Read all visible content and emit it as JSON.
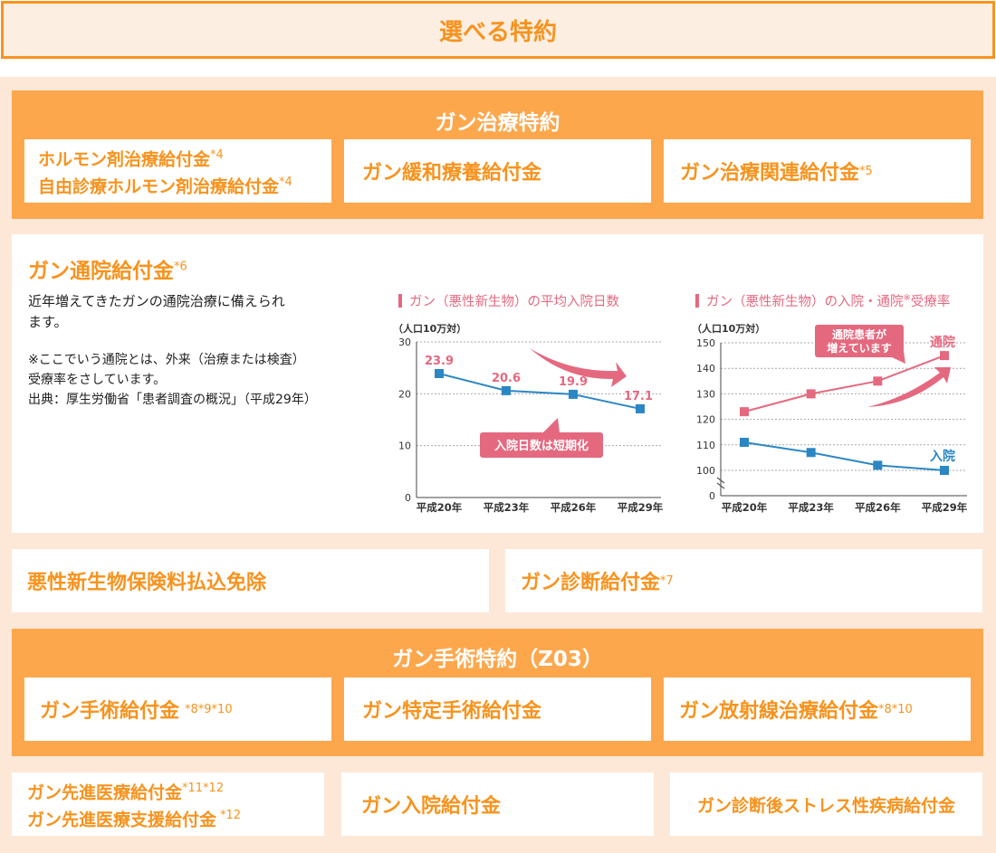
{
  "header": {
    "title": "選べる特約"
  },
  "cancer_treatment": {
    "title": "ガン治療特約",
    "items": [
      {
        "line1": "ホルモン剤治療給付金",
        "line1_sup": "*4",
        "line2": "自由診療ホルモン剤治療給付金",
        "line2_sup": "*4"
      },
      {
        "label": "ガン緩和療養給付金"
      },
      {
        "label": "ガン治療関連給付金",
        "sup": "*5"
      }
    ]
  },
  "outpatient": {
    "title": "ガン通院給付金",
    "title_sup": "*6",
    "description": "近年増えてきたガンの通院治療に備えられ",
    "description2": "ます。",
    "note1": "※ここでいう通院とは、外来（治療または検査）",
    "note2": "受療率をさしています。",
    "source": "出典：厚生労働省「患者調査の概況」（平成29年）"
  },
  "chart_data": [
    {
      "type": "line",
      "title": "ガン（悪性新生物）の平均入院日数",
      "unit_label": "（人口10万対）",
      "categories": [
        "平成20年",
        "平成23年",
        "平成26年",
        "平成29年"
      ],
      "series": [
        {
          "values": [
            23.9,
            20.6,
            19.9,
            17.1
          ]
        }
      ],
      "data_labels": [
        "23.9",
        "20.6",
        "19.9",
        "17.1"
      ],
      "ylim": [
        0,
        30
      ],
      "yticks": [
        "0",
        "10",
        "20",
        "30"
      ],
      "annotation": "入院日数は短期化",
      "colors": {
        "line": "#2b87c4",
        "label": "#e4697f"
      }
    },
    {
      "type": "line",
      "title": "ガン（悪性新生物）の入院・通院",
      "title_sup": "※",
      "title_suffix": "受療率",
      "unit_label": "（人口10万対）",
      "categories": [
        "平成20年",
        "平成23年",
        "平成26年",
        "平成29年"
      ],
      "series": [
        {
          "name": "通院",
          "values": [
            123,
            130,
            135,
            145
          ],
          "color": "#e4697f"
        },
        {
          "name": "入院",
          "values": [
            111,
            107,
            102,
            100
          ],
          "color": "#2b87c4"
        }
      ],
      "ylim": [
        100,
        150
      ],
      "yticks": [
        "0",
        "100",
        "110",
        "120",
        "130",
        "140",
        "150"
      ],
      "axis_break": true,
      "annotation_line1": "通院患者が",
      "annotation_line2": "増えています"
    }
  ],
  "row3": [
    {
      "label": "悪性新生物保険料払込免除"
    },
    {
      "label": "ガン診断給付金",
      "sup": "*7"
    }
  ],
  "surgery": {
    "title": "ガン手術特約（Z03）",
    "items": [
      {
        "label": "ガン手術給付金",
        "sup": "*8*9*10"
      },
      {
        "label": "ガン特定手術給付金"
      },
      {
        "label": "ガン放射線治療給付金",
        "sup": "*8*10"
      }
    ]
  },
  "row5": {
    "advanced": {
      "line1": "ガン先進医療給付金",
      "line1_sup": "*11*12",
      "line2": "ガン先進医療支援給付金",
      "line2_sup": "*12"
    },
    "hospital": {
      "label": "ガン入院給付金"
    },
    "stress": {
      "label": "ガン診断後ストレス性疾病給付金"
    }
  },
  "colors": {
    "accent": "#f7931e",
    "panel": "#fda74d",
    "background": "#fde8d8",
    "pink": "#e4697f",
    "blue": "#2b87c4"
  }
}
